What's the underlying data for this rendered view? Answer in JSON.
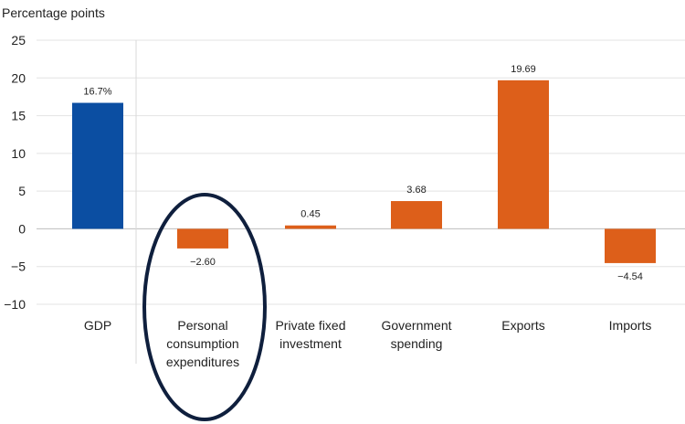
{
  "chart_data": {
    "type": "bar",
    "ylabel": "Percentage points",
    "ylim": [
      -10,
      25
    ],
    "yticks": [
      25,
      20,
      15,
      10,
      5,
      0,
      -5,
      -10
    ],
    "ytick_labels": [
      "25",
      "20",
      "15",
      "10",
      "5",
      "0",
      "−5",
      "−10"
    ],
    "grid": true,
    "categories": [
      [
        "GDP"
      ],
      [
        "Personal",
        "consumption",
        "expenditures"
      ],
      [
        "Private fixed",
        "investment"
      ],
      [
        "Government",
        "spending"
      ],
      [
        "Exports"
      ],
      [
        "Imports"
      ]
    ],
    "values": [
      16.7,
      -2.6,
      0.45,
      3.68,
      19.69,
      -4.54
    ],
    "data_labels": [
      "16.7%",
      "−2.60",
      "0.45",
      "3.68",
      "19.69",
      "−4.54"
    ],
    "colors": [
      "#0b4ea2",
      "#dd5f1a",
      "#dd5f1a",
      "#dd5f1a",
      "#dd5f1a",
      "#dd5f1a"
    ],
    "highlighted_category": "Personal consumption expenditures",
    "highlight_color": "#0f1f3d"
  }
}
